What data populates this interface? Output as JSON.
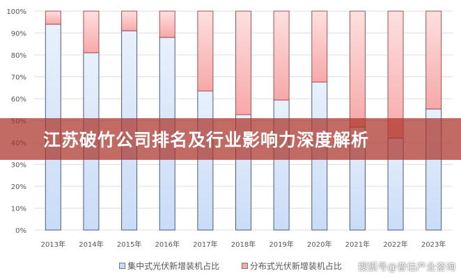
{
  "chart_data": {
    "type": "bar",
    "stacked": true,
    "categories": [
      "2013年",
      "2014年",
      "2015年",
      "2016年",
      "2017年",
      "2018年",
      "2019年",
      "2020年",
      "2021年",
      "2022年",
      "2023年"
    ],
    "series": [
      {
        "name": "集中式光伏新增装机占比",
        "values": [
          94,
          81,
          91,
          88,
          63.5,
          52.7,
          59.4,
          67.6,
          47,
          42,
          55.3
        ],
        "color": "#c9dcf7"
      },
      {
        "name": "分布式光伏新增装机占比",
        "values": [
          6,
          19,
          9,
          12,
          36.5,
          47.3,
          40.6,
          32.4,
          53,
          58,
          44.7
        ],
        "color": "#f7a8a8"
      }
    ],
    "yticks": [
      "0%",
      "10%",
      "20%",
      "30%",
      "40%",
      "50%",
      "60%",
      "70%",
      "80%",
      "90%",
      "100%"
    ],
    "ylim": [
      0,
      100
    ],
    "grid": true,
    "legend": "bottom"
  },
  "banner": {
    "title": "江苏破竹公司排名及行业影响力深度解析"
  },
  "watermark": "搜狐号@普估产业咨询"
}
